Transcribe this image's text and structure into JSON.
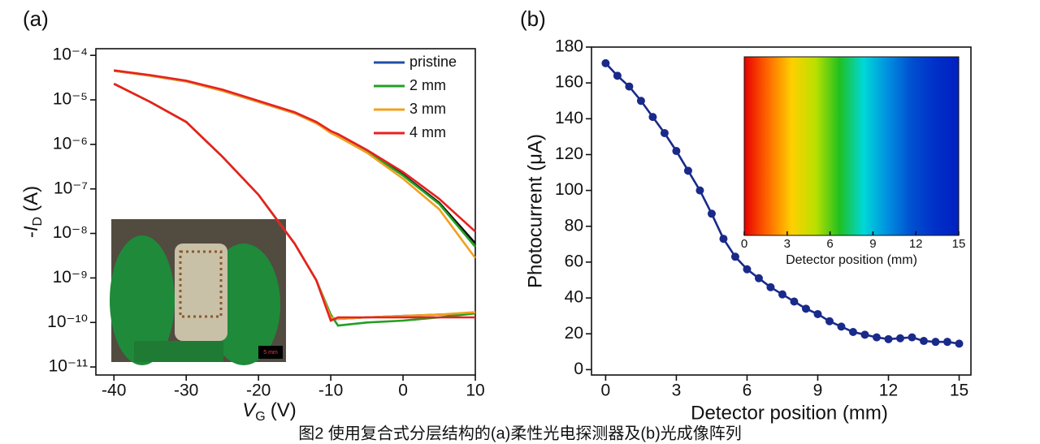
{
  "chart_data": [
    {
      "type": "line",
      "panel_label": "(a)",
      "log_scale": true,
      "legend": "upper right",
      "x": [
        -40,
        -35,
        -30,
        -25,
        -20,
        -15,
        -12,
        -10,
        -9,
        -5,
        0,
        5,
        10
      ],
      "xlim": [
        -42.5,
        10
      ],
      "xticks": [
        -40,
        -30,
        -20,
        -10,
        0,
        10
      ],
      "ylim": [
        6.6e-12,
        0.000141
      ],
      "yticks": [
        {
          "value": 1e-11,
          "label": "10⁻¹¹"
        },
        {
          "value": 1e-10,
          "label": "10⁻¹⁰"
        },
        {
          "value": 1e-09,
          "label": "10⁻⁹"
        },
        {
          "value": 1e-08,
          "label": "10⁻⁸"
        },
        {
          "value": 1e-07,
          "label": "10⁻⁷"
        },
        {
          "value": 1e-06,
          "label": "10⁻⁶"
        },
        {
          "value": 1e-05,
          "label": "10⁻⁵"
        },
        {
          "value": 0.0001,
          "label": "10⁻⁴"
        }
      ],
      "xlabel": {
        "symbol": "V",
        "subscript": "G",
        "unit": "(V)"
      },
      "ylabel": {
        "prefix": "-",
        "symbol": "I",
        "subscript": "D",
        "unit": "(A)"
      },
      "inset_scale": "5 mm",
      "series": [
        {
          "color": "#111111",
          "values": [
            4.5e-05,
            3.5e-05,
            2.6e-05,
            1.6e-05,
            9e-06,
            5e-06,
            3e-06,
            1.9e-06,
            1.6e-06,
            7e-07,
            2.1e-07,
            4.9e-08,
            6e-09
          ]
        },
        {
          "color": "#22a022",
          "values": [
            4.5e-05,
            3.5e-05,
            2.6e-05,
            1.6e-05,
            9e-06,
            5e-06,
            3e-06,
            1.9e-06,
            1.6e-06,
            7e-07,
            2e-07,
            4.6e-08,
            5e-09
          ]
        },
        {
          "color": "#f0a020",
          "values": [
            4.5e-05,
            3.5e-05,
            2.6e-05,
            1.6e-05,
            9e-06,
            5e-06,
            3e-06,
            1.8e-06,
            1.5e-06,
            6.5e-07,
            1.7e-07,
            3.5e-08,
            2.8e-09
          ]
        },
        {
          "color": "#e82020",
          "values": [
            4.6e-05,
            3.6e-05,
            2.7e-05,
            1.7e-05,
            9.5e-06,
            5.3e-06,
            3.2e-06,
            2e-06,
            1.7e-06,
            7.5e-07,
            2.4e-07,
            6e-08,
            1.1e-08
          ]
        },
        {
          "name": "pristine",
          "color": "#1f4fa8",
          "values": [
            2.3e-05,
            9e-06,
            3.2e-06,
            5.3e-07,
            7.4e-08,
            5.9e-09,
            8.9e-10,
            1.2e-10,
            1.2e-10,
            1.3e-10,
            1.4e-10,
            1.5e-10,
            1.6e-10
          ]
        },
        {
          "name": "2 mm",
          "color": "#22a022",
          "values": [
            2.3e-05,
            9e-06,
            3.2e-06,
            5.3e-07,
            7.4e-08,
            5.9e-09,
            8.9e-10,
            1.5e-10,
            8.5e-11,
            1e-10,
            1.1e-10,
            1.3e-10,
            1.6e-10
          ]
        },
        {
          "name": "3 mm",
          "color": "#f0a020",
          "values": [
            2.3e-05,
            9e-06,
            3.2e-06,
            5.3e-07,
            7.4e-08,
            5.9e-09,
            8.9e-10,
            1.3e-10,
            1.2e-10,
            1.3e-10,
            1.4e-10,
            1.5e-10,
            1.7e-10
          ]
        },
        {
          "name": "4 mm",
          "color": "#e82020",
          "values": [
            2.3e-05,
            9e-06,
            3.2e-06,
            5.3e-07,
            7.4e-08,
            5.9e-09,
            8.9e-10,
            1.1e-10,
            1.3e-10,
            1.3e-10,
            1.3e-10,
            1.3e-10,
            1.3e-10
          ]
        }
      ]
    },
    {
      "type": "line",
      "panel_label": "(b)",
      "markers": true,
      "x": [
        0,
        0.5,
        1,
        1.5,
        2,
        2.5,
        3,
        3.5,
        4,
        4.5,
        5,
        5.5,
        6,
        6.5,
        7,
        7.5,
        8,
        8.5,
        9,
        9.5,
        10,
        10.5,
        11,
        11.5,
        12,
        12.5,
        13,
        13.5,
        14,
        14.5,
        15
      ],
      "xlim": [
        -0.6,
        15.5
      ],
      "xticks": [
        0,
        3,
        6,
        9,
        12,
        15
      ],
      "ylim": [
        -3,
        180
      ],
      "yticks": [
        0,
        20,
        40,
        60,
        80,
        100,
        120,
        140,
        160,
        180
      ],
      "xlabel": "Detector position (mm)",
      "ylabel": "Photocurrent (μA)",
      "series": [
        {
          "color": "#1a2a8a",
          "values": [
            171,
            164,
            158,
            150,
            141,
            132,
            122,
            111,
            100,
            87,
            73,
            63,
            56,
            51,
            46,
            42,
            38,
            34,
            31,
            27,
            24,
            21,
            19.5,
            18,
            17,
            17.5,
            18,
            16,
            15.5,
            15.5,
            14.5
          ]
        }
      ],
      "inset": {
        "xlim": [
          0,
          15
        ],
        "xticks": [
          0,
          3,
          6,
          9,
          12,
          15
        ],
        "xlabel": "Detector position (mm)",
        "colors": [
          "#e80000",
          "#ff6a00",
          "#ffd000",
          "#b8e000",
          "#20c020",
          "#00d8d8",
          "#0090e0",
          "#0050d0",
          "#0030c8",
          "#0020c0"
        ]
      }
    }
  ],
  "caption": "图2 使用复合式分层结构的(a)柔性光电探测器及(b)光成像阵列"
}
